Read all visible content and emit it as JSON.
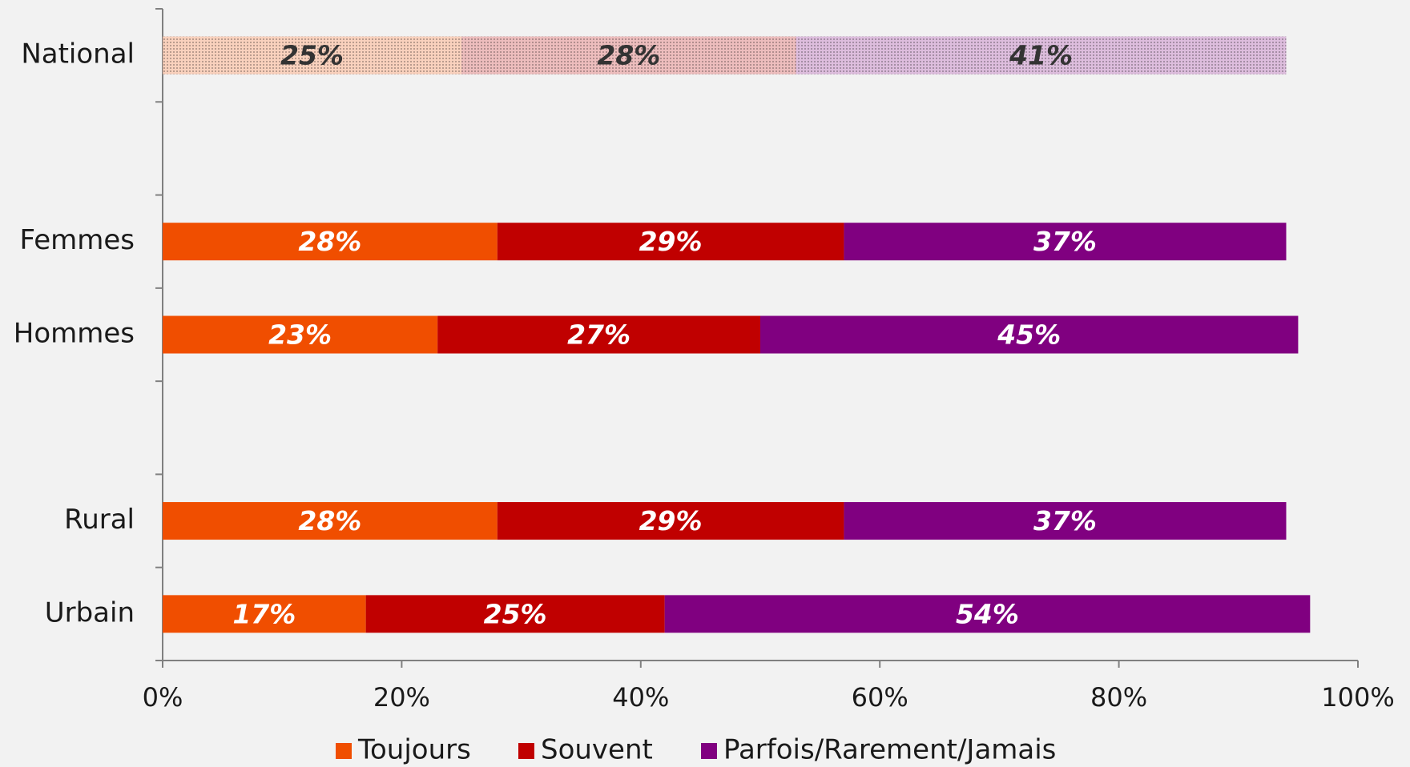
{
  "chart_data": {
    "type": "stacked-bar-horizontal",
    "categories": [
      "National",
      null,
      "Femmes",
      "Hommes",
      null,
      "Rural",
      "Urbain"
    ],
    "series": [
      {
        "name": "Toujours",
        "color": "#f04e00",
        "values": [
          25,
          null,
          28,
          23,
          null,
          28,
          17
        ],
        "value_labels": [
          "25%",
          null,
          "28%",
          "23%",
          null,
          "28%",
          "17%"
        ]
      },
      {
        "name": "Souvent",
        "color": "#c00000",
        "values": [
          28,
          null,
          29,
          27,
          null,
          29,
          25
        ],
        "value_labels": [
          "28%",
          null,
          "29%",
          "27%",
          null,
          "29%",
          "25%"
        ]
      },
      {
        "name": "Parfois/Rarement/Jamais",
        "color": "#800080",
        "values": [
          41,
          null,
          37,
          45,
          null,
          37,
          54
        ],
        "value_labels": [
          "41%",
          null,
          "37%",
          "45%",
          null,
          "37%",
          "54%"
        ]
      }
    ],
    "xlim": [
      0,
      100
    ],
    "xticks": [
      {
        "value": 0,
        "label": "0%"
      },
      {
        "value": 20,
        "label": "20%"
      },
      {
        "value": 40,
        "label": "40%"
      },
      {
        "value": 60,
        "label": "60%"
      },
      {
        "value": 80,
        "label": "80%"
      },
      {
        "value": 100,
        "label": "100%"
      }
    ],
    "patterned_rows": [
      0
    ],
    "legend": "bottom"
  }
}
